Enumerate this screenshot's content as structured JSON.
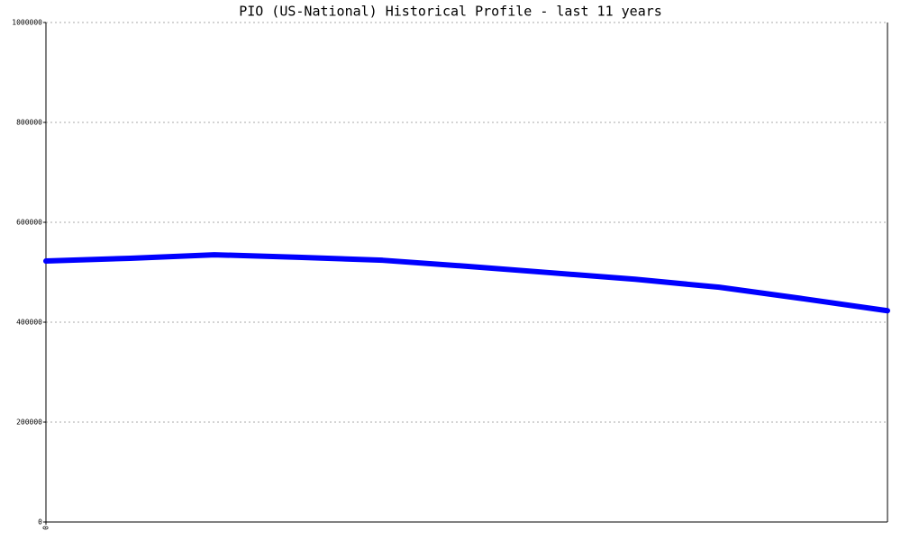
{
  "chart_data": {
    "type": "line",
    "title": "PIO (US-National) Historical Profile - last 11 years",
    "x": [
      0,
      1,
      2,
      3,
      4,
      5,
      6,
      7,
      8,
      9,
      10
    ],
    "series": [
      {
        "color": "#0000ff",
        "values": [
          522500,
          528000,
          535000,
          530000,
          524000,
          512000,
          499000,
          486000,
          470000,
          447000,
          423000
        ]
      }
    ],
    "xlim": [
      0,
      10
    ],
    "xticks": [
      0
    ],
    "ylim": [
      0,
      1000000
    ],
    "yticks": [
      0,
      200000,
      400000,
      600000,
      800000,
      1000000
    ],
    "grid": true
  }
}
